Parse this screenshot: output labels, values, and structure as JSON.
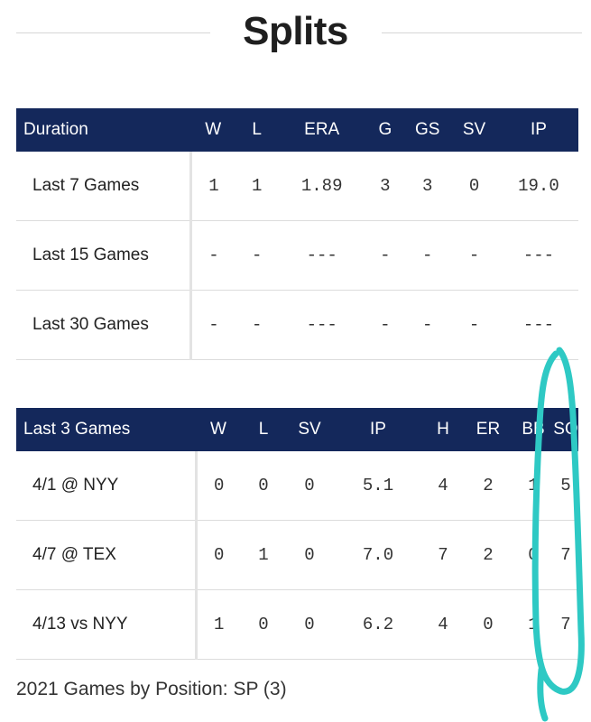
{
  "page_title": "Splits",
  "duration_table": {
    "headers": [
      "Duration",
      "W",
      "L",
      "ERA",
      "G",
      "GS",
      "SV",
      "IP"
    ],
    "rows": [
      {
        "label": "Last 7 Games",
        "cells": [
          "1",
          "1",
          "1.89",
          "3",
          "3",
          "0",
          "19.0"
        ]
      },
      {
        "label": "Last 15 Games",
        "cells": [
          "-",
          "-",
          "---",
          "-",
          "-",
          "-",
          "---"
        ]
      },
      {
        "label": "Last 30 Games",
        "cells": [
          "-",
          "-",
          "---",
          "-",
          "-",
          "-",
          "---"
        ]
      }
    ]
  },
  "games_table": {
    "headers": [
      "Last 3 Games",
      "W",
      "L",
      "SV",
      "IP",
      "H",
      "ER",
      "BB",
      "SO"
    ],
    "rows": [
      {
        "label": "4/1 @ NYY",
        "cells": [
          "0",
          "0",
          "0",
          "5.1",
          "4",
          "2",
          "1",
          "5"
        ]
      },
      {
        "label": "4/7 @ TEX",
        "cells": [
          "0",
          "1",
          "0",
          "7.0",
          "7",
          "2",
          "0",
          "7"
        ]
      },
      {
        "label": "4/13 vs NYY",
        "cells": [
          "1",
          "0",
          "0",
          "6.2",
          "4",
          "0",
          "1",
          "7"
        ]
      }
    ]
  },
  "footer_text": "2021 Games by Position: SP (3)",
  "colors": {
    "header_bg": "#14285b",
    "annotation": "#2ec9c4"
  }
}
